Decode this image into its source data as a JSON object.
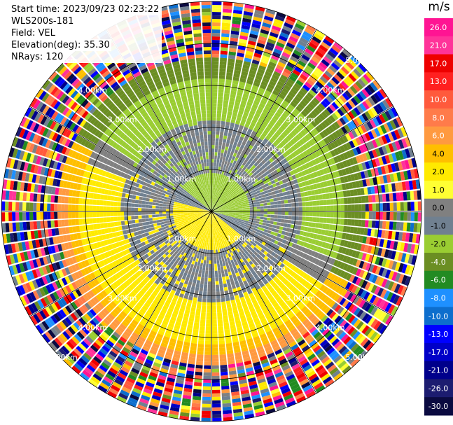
{
  "info": {
    "start_time": "Start time: 2023/09/23 02:23:22",
    "instrument": "WLS200s-181",
    "field": "Field: VEL",
    "elevation": "Elevation(deg): 35.30",
    "nrays": "NRays: 120"
  },
  "range_rings": [
    {
      "km": 1,
      "label": "1.00km"
    },
    {
      "km": 2,
      "label": "2.00km"
    },
    {
      "km": 3,
      "label": "3.00km"
    },
    {
      "km": 4,
      "label": "4.00km"
    },
    {
      "km": 5,
      "label": "5.00km"
    }
  ],
  "max_range_km": 5,
  "nrays": 120,
  "colorbar": {
    "unit": "m/s",
    "ticks": [
      "26.0",
      "21.0",
      "17.0",
      "13.0",
      "10.0",
      "8.0",
      "6.0",
      "4.0",
      "2.0",
      "1.0",
      "0.0",
      "-1.0",
      "-2.0",
      "-4.0",
      "-6.0",
      "-8.0",
      "-10.0",
      "-13.0",
      "-17.0",
      "-21.0",
      "-26.0",
      "-30.0"
    ],
    "colors": [
      "#ff1493",
      "#ff3399",
      "#ee0000",
      "#ff2020",
      "#ff5a3c",
      "#ff7b4a",
      "#ff9a40",
      "#ffbf00",
      "#ffea00",
      "#ffff33",
      "#808080",
      "#708090",
      "#9acd32",
      "#6b8e23",
      "#228b22",
      "#1e90ff",
      "#0d6ecd",
      "#0000ff",
      "#0000c8",
      "#00008b",
      "#1c1c70",
      "#0a0a40"
    ]
  }
}
